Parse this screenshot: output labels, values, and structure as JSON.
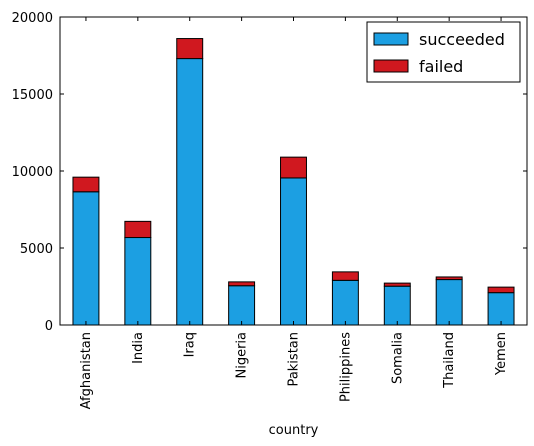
{
  "chart_data": {
    "type": "bar",
    "stacked": true,
    "categories": [
      "Afghanistan",
      "India",
      "Iraq",
      "Nigeria",
      "Pakistan",
      "Philippines",
      "Somalia",
      "Thailand",
      "Yemen"
    ],
    "series": [
      {
        "name": "succeeded",
        "color": "#1c9fe2",
        "values": [
          8650,
          5680,
          17300,
          2550,
          9550,
          2900,
          2520,
          2950,
          2100
        ]
      },
      {
        "name": "failed",
        "color": "#d0181f",
        "values": [
          950,
          1050,
          1300,
          250,
          1350,
          550,
          200,
          170,
          360
        ]
      }
    ],
    "title": "",
    "xlabel": "country",
    "ylabel": "",
    "ylim": [
      0,
      20000
    ],
    "yticks": [
      0,
      5000,
      10000,
      15000,
      20000
    ],
    "grid": false,
    "legend_position": "top-right"
  }
}
